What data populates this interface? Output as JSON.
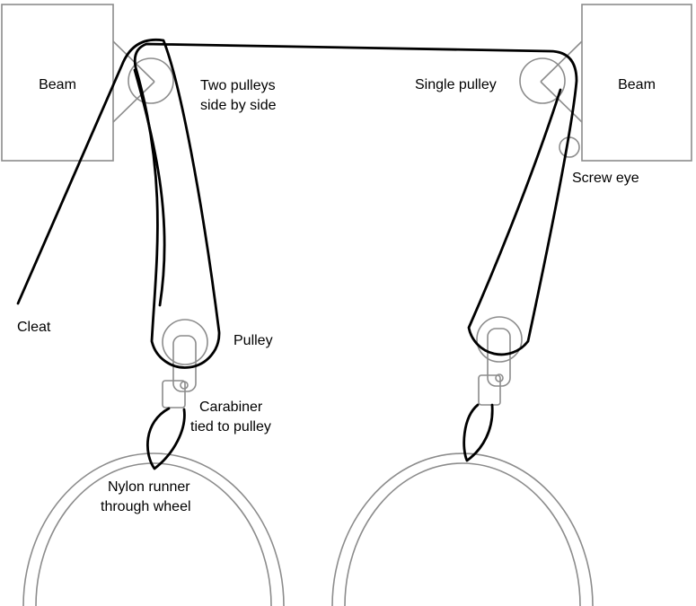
{
  "labels": {
    "beam_left": "Beam",
    "beam_right": "Beam",
    "two_pulleys_1": "Two pulleys",
    "two_pulleys_2": "side by side",
    "single_pulley": "Single pulley",
    "screw_eye": "Screw eye",
    "cleat": "Cleat",
    "pulley": "Pulley",
    "carabiner_1": "Carabiner",
    "carabiner_2": "tied to pulley",
    "nylon_1": "Nylon runner",
    "nylon_2": "through wheel"
  },
  "colors": {
    "rope": "#000000",
    "hardware": "#8c8c8c",
    "text": "#000000",
    "background": "#ffffff"
  }
}
